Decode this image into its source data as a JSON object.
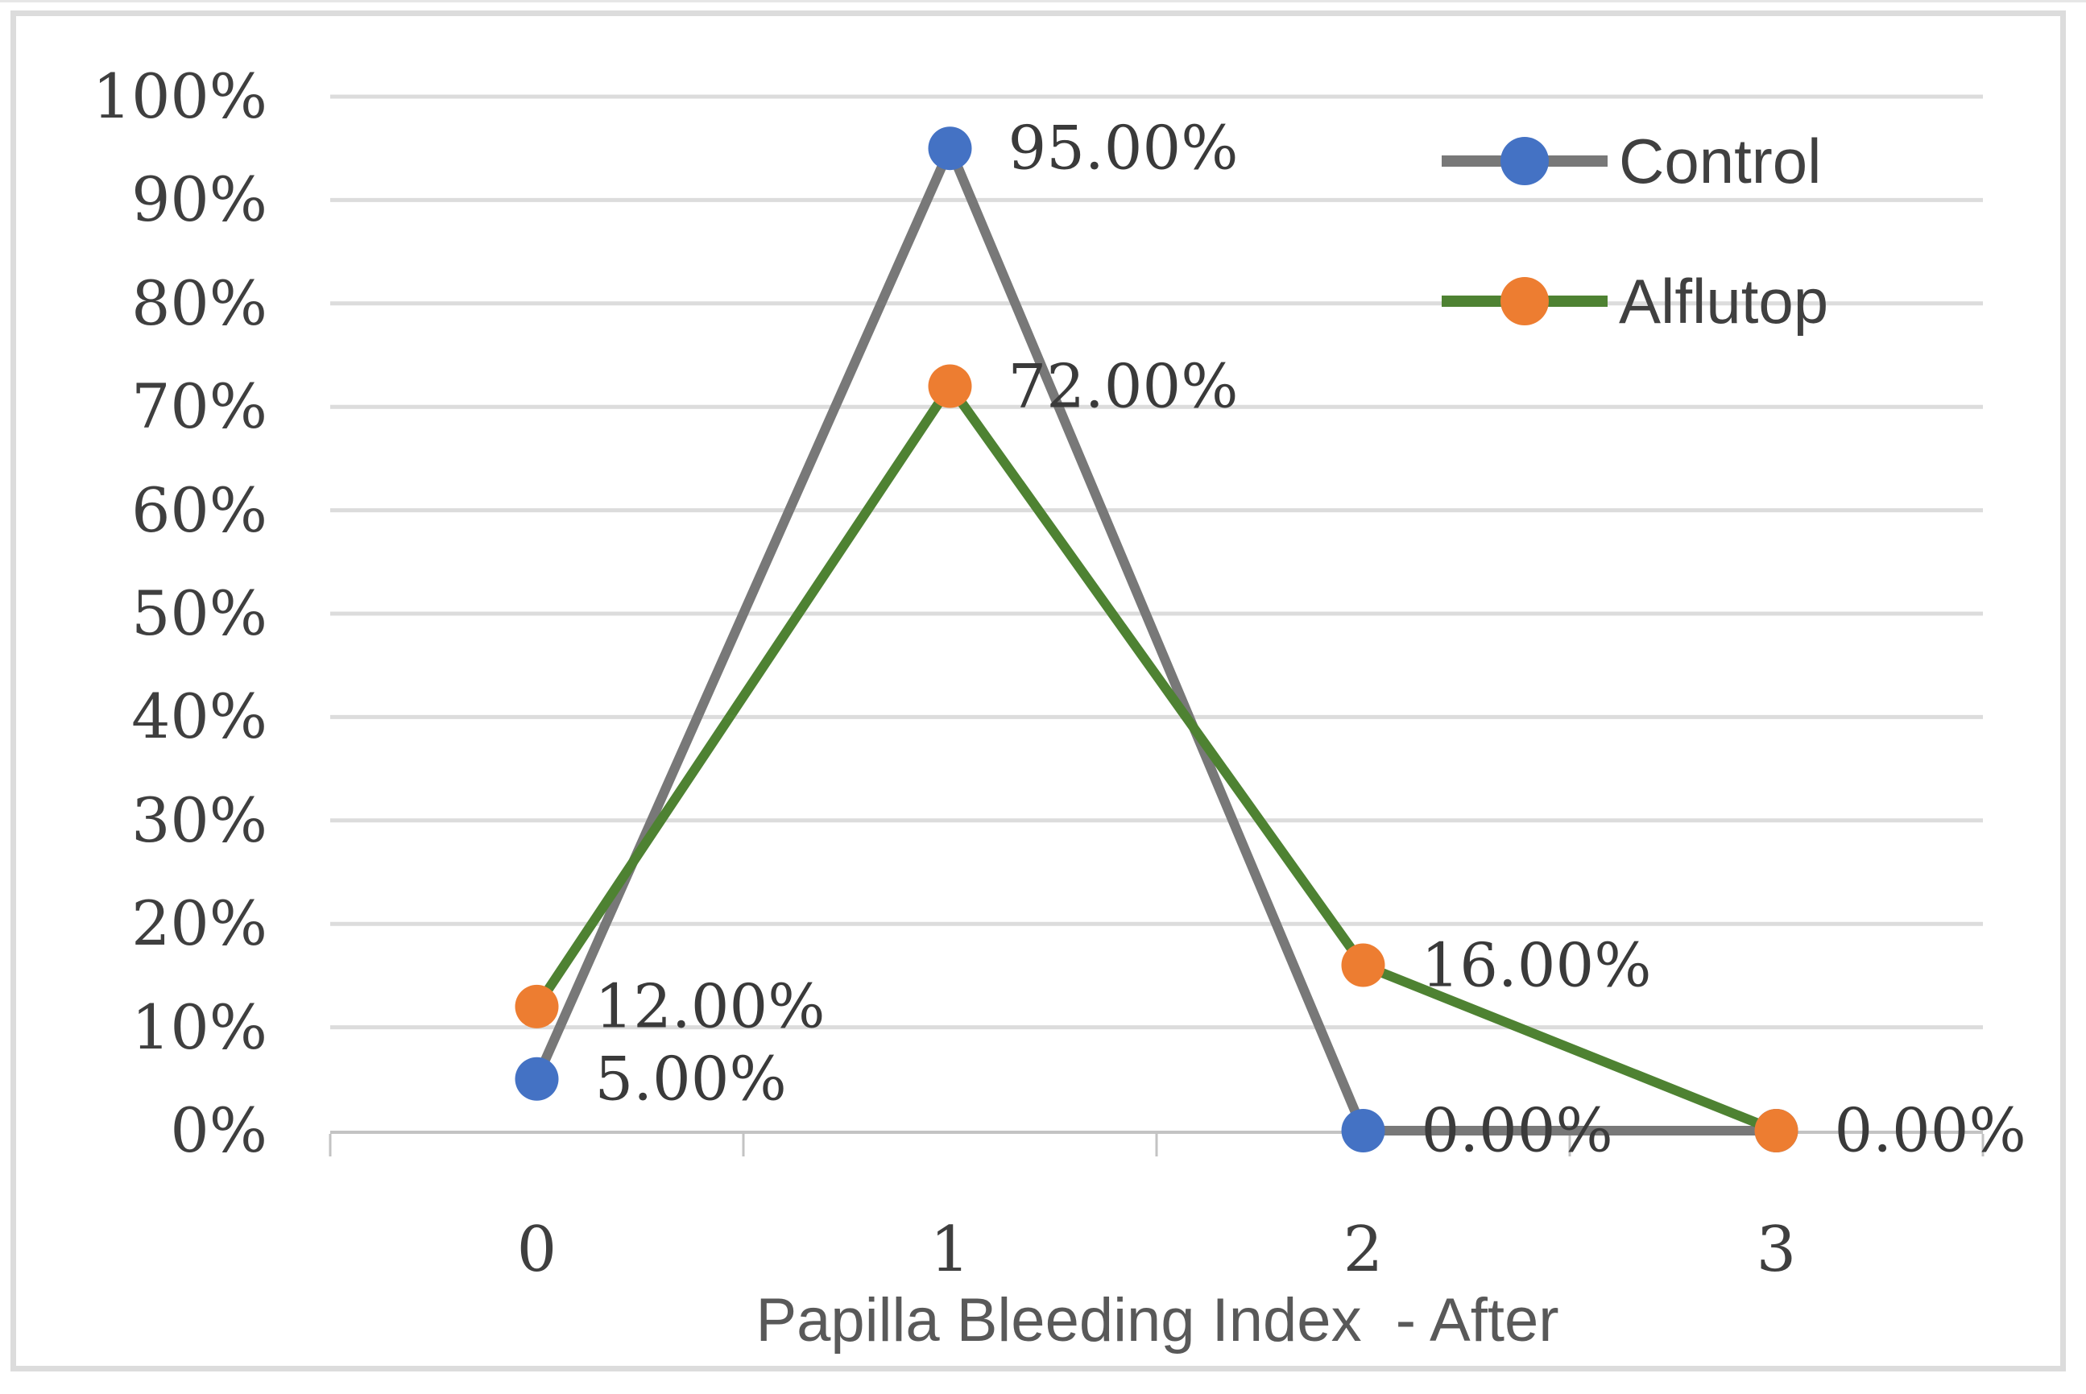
{
  "chart_data": {
    "type": "line",
    "title": "",
    "xlabel": "Papilla Bleeding Index  - After",
    "ylabel": "",
    "x_categories": [
      "0",
      "1",
      "2",
      "3"
    ],
    "y_ticks": [
      "100%",
      "90%",
      "80%",
      "70%",
      "60%",
      "50%",
      "40%",
      "30%",
      "20%",
      "10%",
      "0%"
    ],
    "ylim": [
      0,
      100
    ],
    "grid": true,
    "legend_position": "top-right",
    "series": [
      {
        "name": "Control",
        "values": [
          5,
          95,
          0,
          0
        ],
        "data_labels": [
          "5.00%",
          "95.00%",
          "0.00%"
        ],
        "line_color": "#787878",
        "marker_color": "#4472c4"
      },
      {
        "name": "Alflutop",
        "values": [
          12,
          72,
          16,
          0
        ],
        "data_labels": [
          "12.00%",
          "72.00%",
          "16.00%",
          "0.00%"
        ],
        "line_color": "#4e8232",
        "marker_color": "#ed7d31"
      }
    ],
    "colors": {
      "gridline": "#dcdcdc",
      "axis_line": "#c3c3c3",
      "tick_text": "#3f3f3f",
      "data_label_text": "#3a3a3a",
      "axis_title_text": "#595959",
      "legend_text": "#404040",
      "frame_border": "#dcdcdc",
      "background": "#ffffff"
    }
  }
}
